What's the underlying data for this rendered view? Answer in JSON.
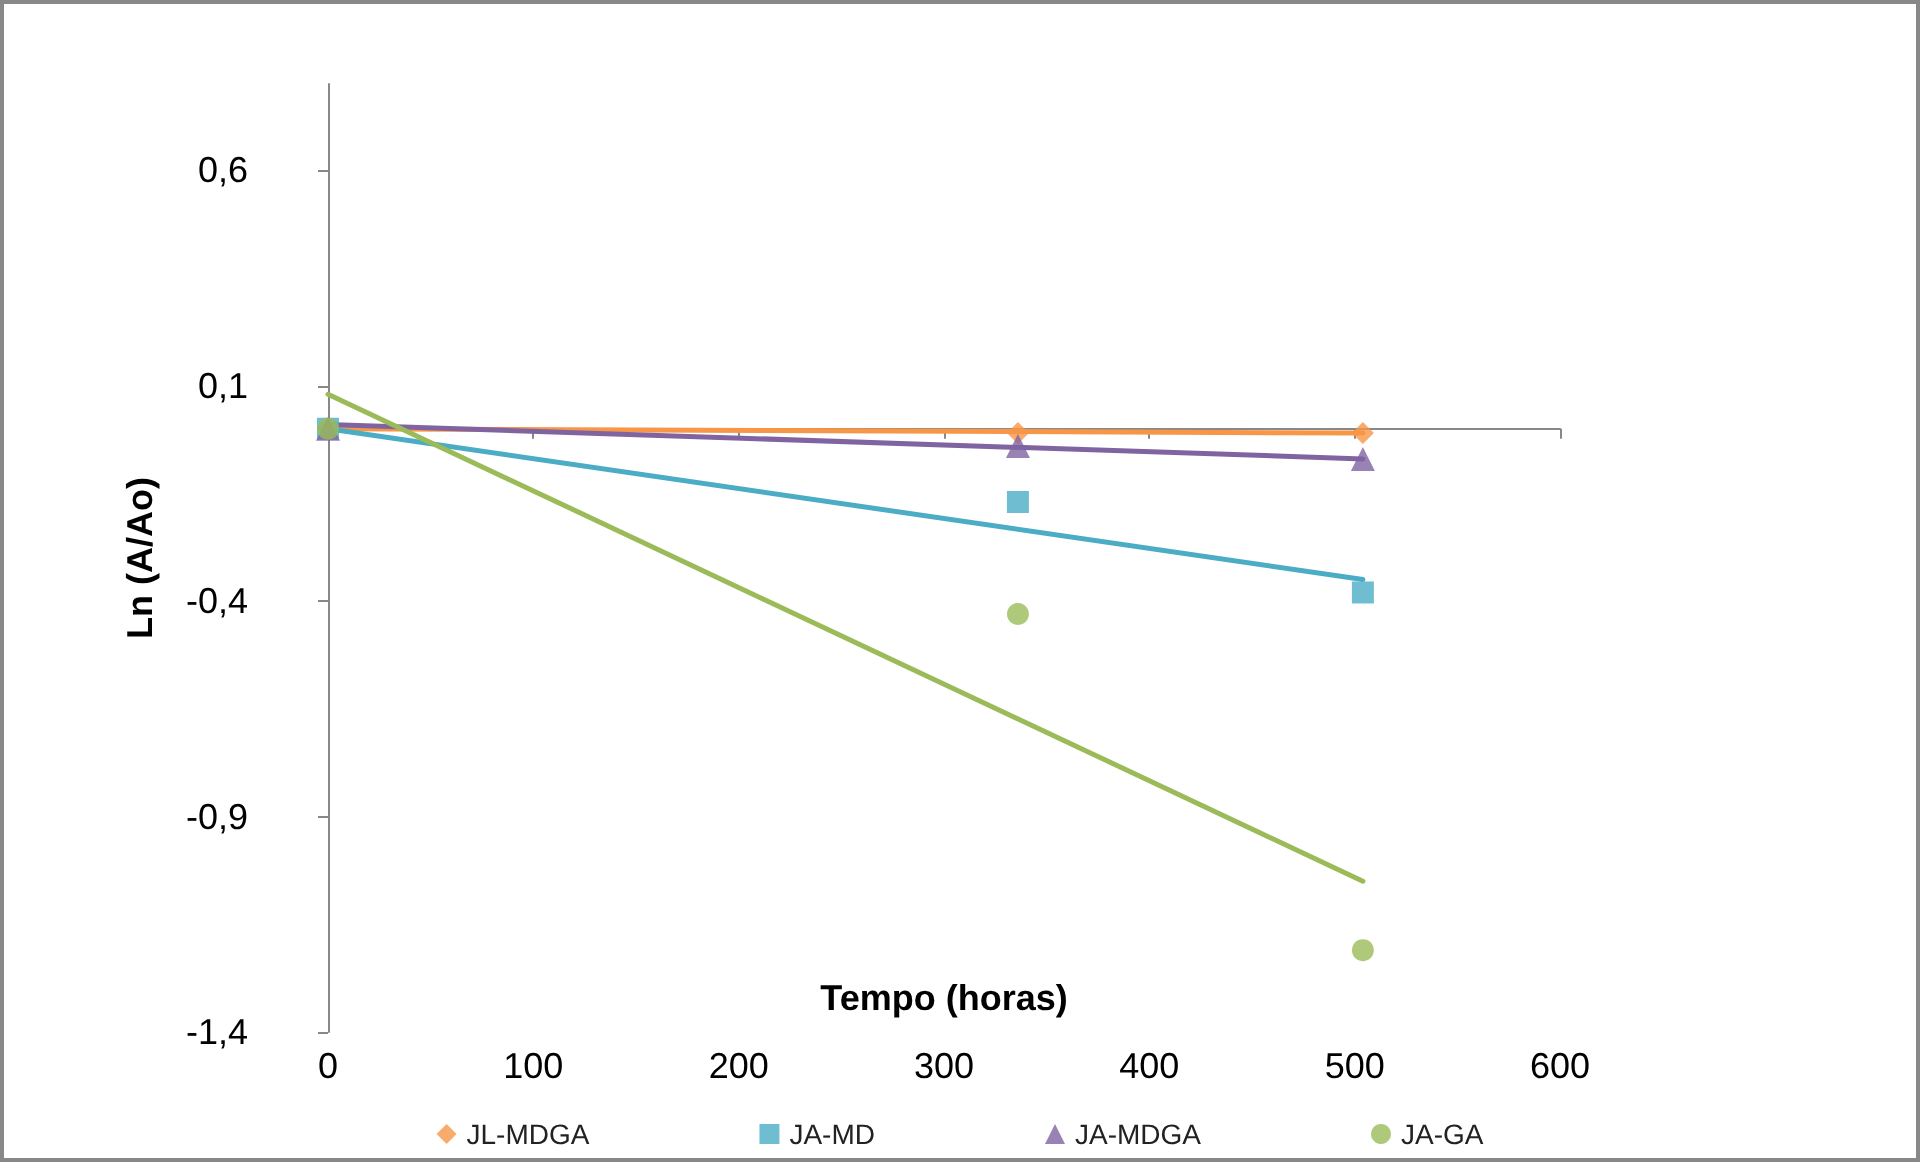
{
  "chart_data": {
    "type": "scatter",
    "xlabel": "Tempo (horas)",
    "ylabel": "Ln (A/Ao)",
    "xlim": [
      0,
      600
    ],
    "xticks": [
      0,
      100,
      200,
      300,
      400,
      500,
      600
    ],
    "ylim": [
      -1.4,
      0.8
    ],
    "yticks": [
      {
        "value": -1.4,
        "label": "-1,4"
      },
      {
        "value": -0.9,
        "label": "-0,9"
      },
      {
        "value": -0.4,
        "label": "-0,4"
      },
      {
        "value": 0.1,
        "label": "0,1"
      },
      {
        "value": 0.6,
        "label": "0,6"
      }
    ],
    "grid": false,
    "legend": "bottom",
    "series": [
      {
        "name": "JL-MDGA",
        "marker": "diamond",
        "color": "#f79646",
        "x": [
          0,
          336,
          504
        ],
        "values": [
          0,
          -0.01,
          -0.01
        ]
      },
      {
        "name": "JA-MD",
        "marker": "square",
        "color": "#4bacc6",
        "x": [
          0,
          336,
          504
        ],
        "values": [
          0,
          -0.17,
          -0.38
        ]
      },
      {
        "name": "JA-MDGA",
        "marker": "triangle",
        "color": "#8064a2",
        "x": [
          0,
          336,
          504
        ],
        "values": [
          0,
          -0.04,
          -0.07
        ]
      },
      {
        "name": "JA-GA",
        "marker": "circle",
        "color": "#9bbb59",
        "x": [
          0,
          336,
          504
        ],
        "values": [
          0,
          -0.43,
          -1.21
        ]
      },
      {
        "type": "line",
        "marker": "none",
        "color": "#f79646",
        "x": [
          0,
          504
        ],
        "values": [
          0.0,
          -0.01
        ]
      },
      {
        "type": "line",
        "marker": "none",
        "color": "#4bacc6",
        "x": [
          0,
          504
        ],
        "values": [
          0.0,
          -0.35
        ]
      },
      {
        "type": "line",
        "marker": "none",
        "color": "#8064a2",
        "x": [
          0,
          504
        ],
        "values": [
          0.01,
          -0.07
        ]
      },
      {
        "type": "line",
        "marker": "none",
        "color": "#9bbb59",
        "x": [
          0,
          504
        ],
        "values": [
          0.08,
          -1.05
        ]
      }
    ]
  }
}
